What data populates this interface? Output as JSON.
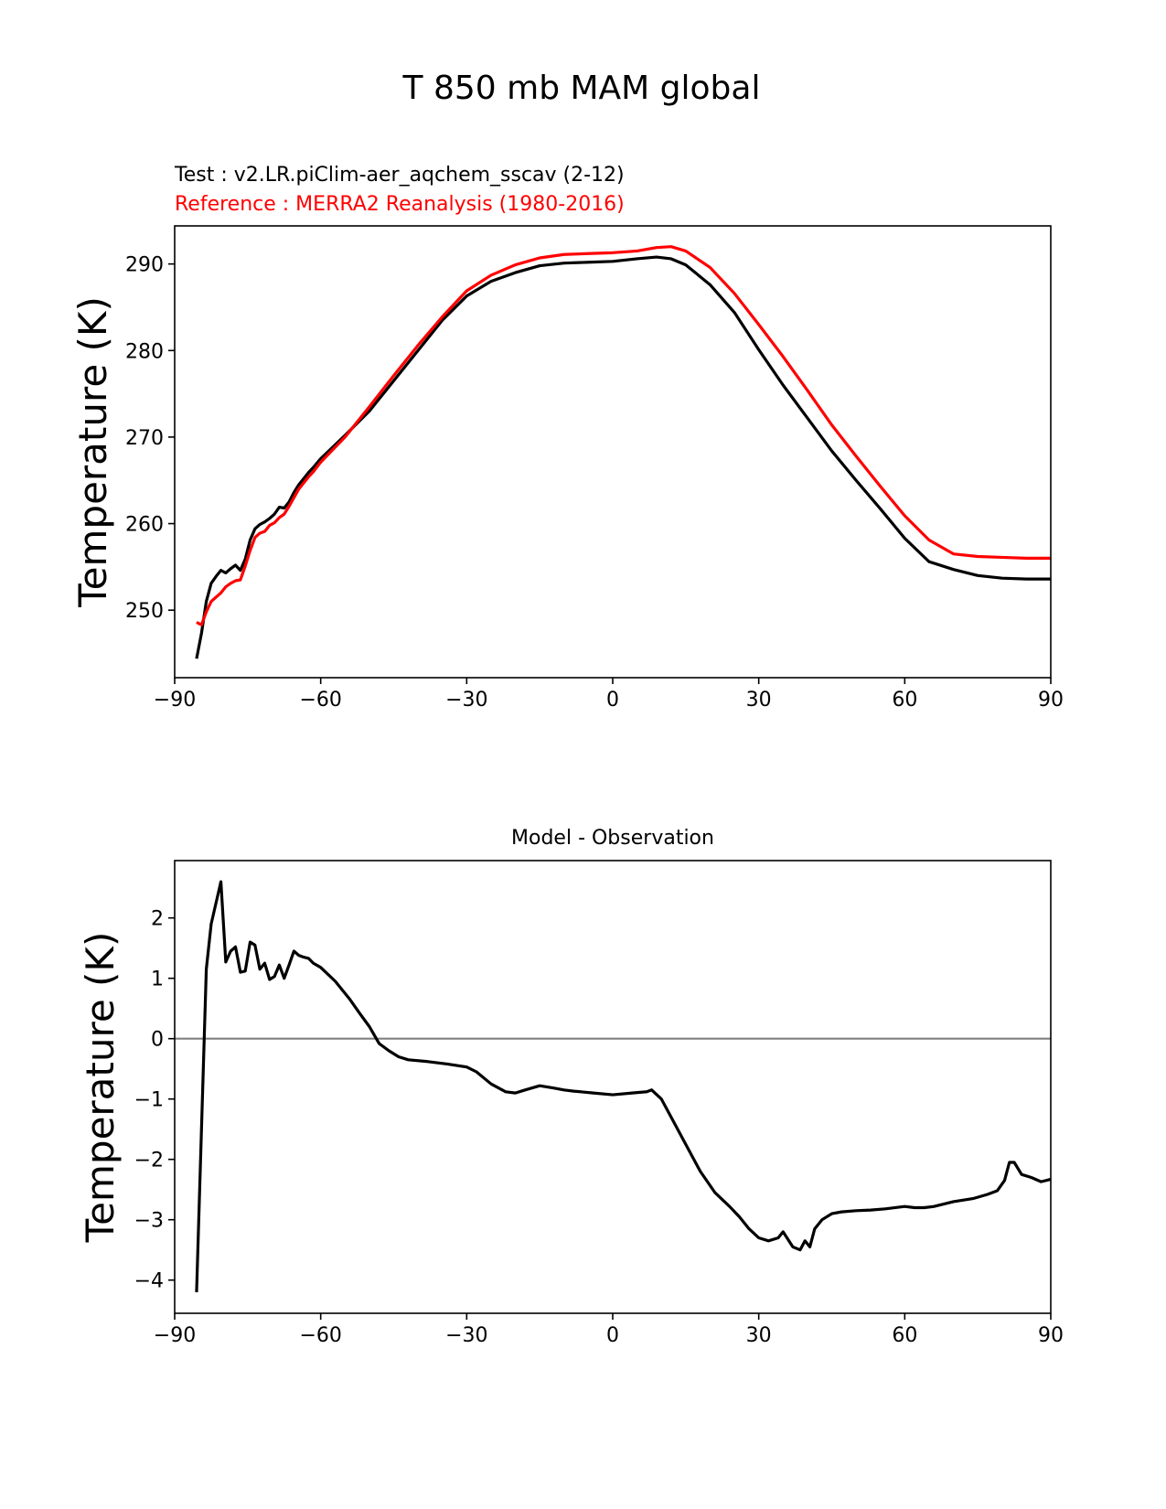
{
  "figure_title": "T 850 mb MAM global",
  "chart_data": [
    {
      "type": "line",
      "title": "",
      "test_label": "Test : v2.LR.piClim-aer_aqchem_sscav (2-12)",
      "reference_label": "Reference : MERRA2 Reanalysis (1980-2016)",
      "xlabel": "",
      "ylabel": "Temperature (K)",
      "xlim": [
        -90,
        90
      ],
      "ylim": [
        242.2,
        294.4
      ],
      "xticks": [
        -90,
        -60,
        -30,
        0,
        30,
        60,
        90
      ],
      "xtick_labels": [
        "−90",
        "−60",
        "−30",
        "0",
        "30",
        "60",
        "90"
      ],
      "yticks": [
        250,
        260,
        270,
        280,
        290
      ],
      "ytick_labels": [
        "250",
        "260",
        "270",
        "280",
        "290"
      ],
      "series": [
        {
          "name": "Test",
          "color": "#000000",
          "x": [
            -85.5,
            -84.5,
            -83.5,
            -82.5,
            -81.5,
            -80.5,
            -79.5,
            -78.5,
            -77.5,
            -76.5,
            -75.5,
            -74.5,
            -73.5,
            -72.5,
            -71.5,
            -70.5,
            -69.5,
            -68.5,
            -67.5,
            -66.5,
            -65.5,
            -64.5,
            -63.5,
            -62.5,
            -61.5,
            -60,
            -55,
            -50,
            -45,
            -40,
            -35,
            -30,
            -25,
            -20,
            -15,
            -10,
            -5,
            0,
            5,
            9,
            12,
            15,
            20,
            25,
            30,
            35,
            40,
            45,
            50,
            55,
            60,
            65,
            70,
            75,
            80,
            85,
            90
          ],
          "y": [
            244.4,
            247.3,
            251.0,
            253.1,
            253.9,
            254.6,
            254.3,
            254.8,
            255.2,
            254.6,
            255.9,
            258.1,
            259.4,
            259.9,
            260.2,
            260.6,
            261.1,
            261.9,
            261.8,
            262.5,
            263.6,
            264.5,
            265.2,
            265.9,
            266.5,
            267.5,
            270.2,
            273.0,
            276.5,
            280.0,
            283.5,
            286.3,
            288.0,
            289.0,
            289.8,
            290.1,
            290.2,
            290.3,
            290.6,
            290.8,
            290.6,
            289.9,
            287.6,
            284.4,
            280.1,
            276.0,
            272.2,
            268.4,
            265.0,
            261.7,
            258.3,
            255.6,
            254.7,
            254.0,
            253.7,
            253.6,
            253.6
          ]
        },
        {
          "name": "Reference",
          "color": "#ff0000",
          "x": [
            -85.5,
            -84.5,
            -83.5,
            -82.5,
            -81.5,
            -80.5,
            -79.5,
            -78.5,
            -77.5,
            -76.5,
            -75.5,
            -74.5,
            -73.5,
            -72.5,
            -71.5,
            -70.5,
            -69.5,
            -68.5,
            -67.5,
            -66.5,
            -65.5,
            -64.5,
            -63.5,
            -62.5,
            -61.5,
            -60,
            -55,
            -50,
            -45,
            -40,
            -35,
            -30,
            -25,
            -20,
            -15,
            -10,
            -5,
            0,
            5,
            9,
            12,
            15,
            20,
            25,
            30,
            35,
            40,
            45,
            50,
            55,
            60,
            65,
            70,
            75,
            80,
            85,
            90
          ],
          "y": [
            248.6,
            248.3,
            249.8,
            251.0,
            251.5,
            252.0,
            252.7,
            253.1,
            253.4,
            253.5,
            255.1,
            256.9,
            258.4,
            258.9,
            259.1,
            259.8,
            260.1,
            260.7,
            261.1,
            262.0,
            263.0,
            264.0,
            264.7,
            265.4,
            266.0,
            267.1,
            270.0,
            273.5,
            277.1,
            280.6,
            283.9,
            286.9,
            288.7,
            289.9,
            290.7,
            291.1,
            291.2,
            291.3,
            291.5,
            291.9,
            292.0,
            291.5,
            289.6,
            286.6,
            283.0,
            279.3,
            275.4,
            271.4,
            267.8,
            264.3,
            260.9,
            258.1,
            256.5,
            256.2,
            256.1,
            256.0,
            256.0
          ]
        }
      ]
    },
    {
      "type": "line",
      "title": "Model - Observation",
      "xlabel": "",
      "ylabel": "Temperature (K)",
      "xlim": [
        -90,
        90
      ],
      "ylim": [
        -4.55,
        2.95
      ],
      "xticks": [
        -90,
        -60,
        -30,
        0,
        30,
        60,
        90
      ],
      "xtick_labels": [
        "−90",
        "−60",
        "−30",
        "0",
        "30",
        "60",
        "90"
      ],
      "yticks": [
        -4,
        -3,
        -2,
        -1,
        0,
        1,
        2
      ],
      "ytick_labels": [
        "−4",
        "−3",
        "−2",
        "−1",
        "0",
        "1",
        "2"
      ],
      "zero_line": {
        "y": 0,
        "color": "#808080"
      },
      "series": [
        {
          "name": "Model - Observation",
          "color": "#000000",
          "x": [
            -85.5,
            -83.5,
            -82.5,
            -81.5,
            -80.5,
            -79.5,
            -78.5,
            -77.5,
            -76.5,
            -75.5,
            -74.5,
            -73.5,
            -72.5,
            -71.5,
            -70.5,
            -69.5,
            -68.5,
            -67.5,
            -66.5,
            -65.5,
            -64.5,
            -63.5,
            -62.5,
            -61.5,
            -60,
            -57,
            -54,
            -52,
            -50,
            -48,
            -46,
            -44,
            -42,
            -38,
            -34,
            -30,
            -28,
            -25,
            -22,
            -20,
            -18,
            -15,
            -12,
            -10,
            -8,
            -4,
            0,
            4,
            7,
            8,
            10,
            12,
            15,
            18,
            21,
            24,
            26,
            28,
            30,
            32,
            34,
            35,
            37,
            38.5,
            39.5,
            40.5,
            41.5,
            43,
            45,
            47,
            50,
            53,
            56,
            60,
            62,
            64,
            66,
            70,
            74,
            77,
            79,
            80.5,
            81.5,
            82.5,
            84,
            86,
            88,
            90
          ],
          "y": [
            -4.2,
            1.15,
            1.9,
            2.25,
            2.6,
            1.27,
            1.45,
            1.52,
            1.1,
            1.12,
            1.6,
            1.55,
            1.15,
            1.25,
            0.98,
            1.03,
            1.22,
            1.0,
            1.22,
            1.45,
            1.38,
            1.35,
            1.33,
            1.25,
            1.18,
            0.95,
            0.65,
            0.42,
            0.2,
            -0.08,
            -0.2,
            -0.3,
            -0.35,
            -0.38,
            -0.42,
            -0.47,
            -0.55,
            -0.75,
            -0.88,
            -0.9,
            -0.85,
            -0.78,
            -0.82,
            -0.85,
            -0.87,
            -0.9,
            -0.93,
            -0.9,
            -0.88,
            -0.85,
            -1.0,
            -1.3,
            -1.75,
            -2.2,
            -2.55,
            -2.78,
            -2.95,
            -3.15,
            -3.3,
            -3.35,
            -3.3,
            -3.2,
            -3.45,
            -3.5,
            -3.35,
            -3.45,
            -3.15,
            -3.0,
            -2.9,
            -2.87,
            -2.85,
            -2.84,
            -2.82,
            -2.78,
            -2.8,
            -2.8,
            -2.78,
            -2.7,
            -2.65,
            -2.58,
            -2.52,
            -2.35,
            -2.05,
            -2.05,
            -2.25,
            -2.3,
            -2.37,
            -2.33
          ]
        }
      ]
    }
  ]
}
